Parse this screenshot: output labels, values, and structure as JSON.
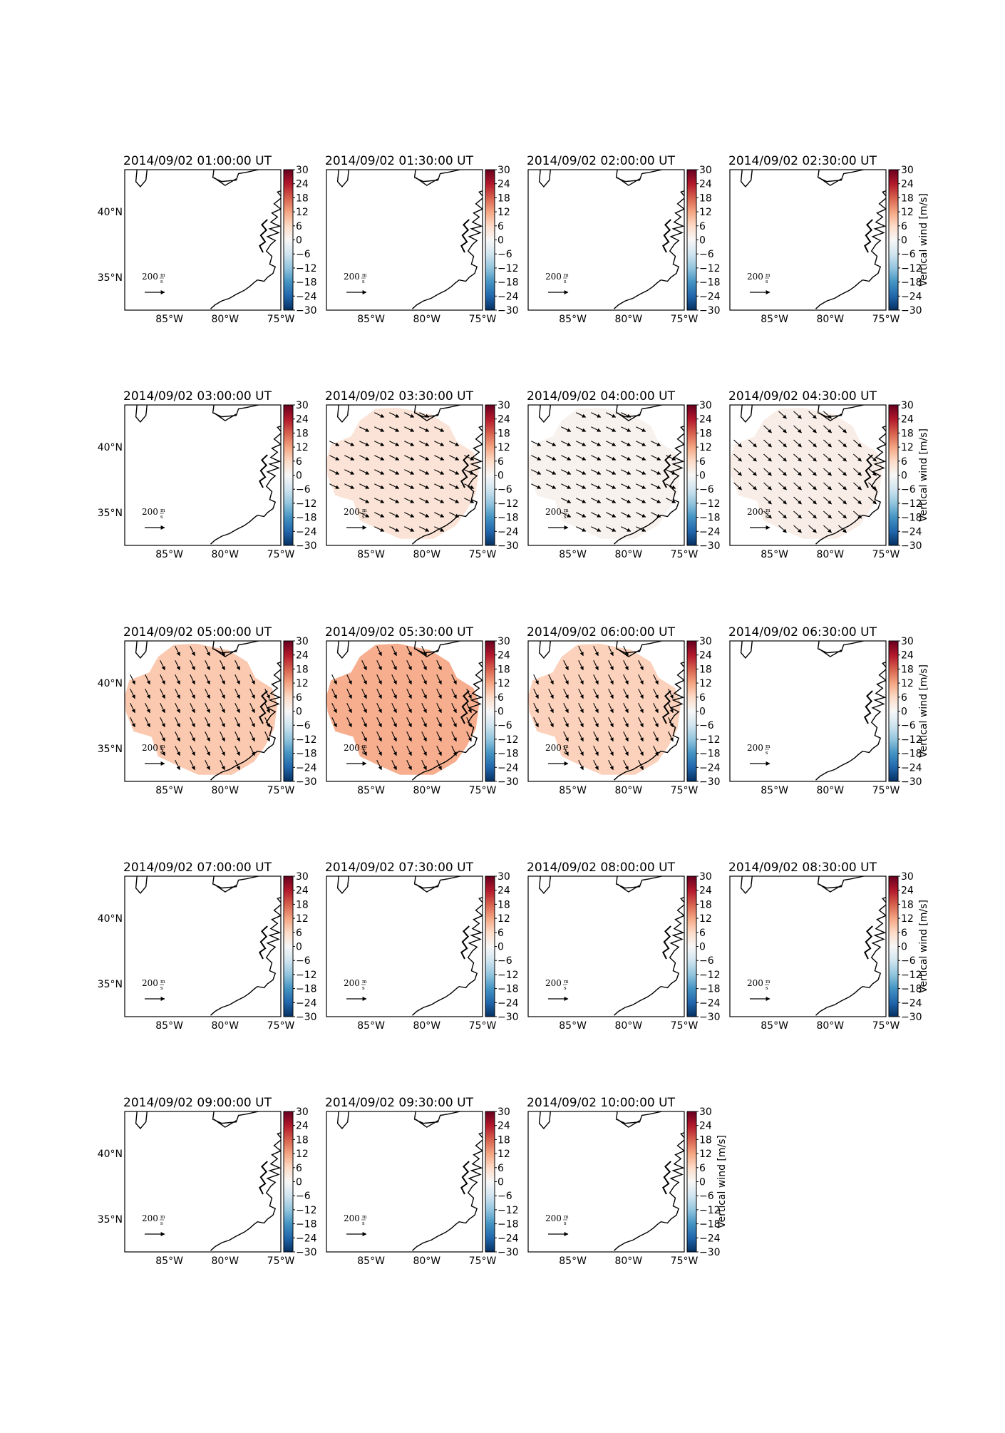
{
  "figure": {
    "map_extent": {
      "lon": [
        -89,
        -75
      ],
      "lat": [
        32.5,
        43.2
      ]
    },
    "x_ticks": [
      {
        "value": -85,
        "label": "85°W"
      },
      {
        "value": -80,
        "label": "80°W"
      },
      {
        "value": -75,
        "label": "75°W"
      }
    ],
    "y_ticks": [
      {
        "value": 35,
        "label": "35°N"
      },
      {
        "value": 40,
        "label": "40°N"
      }
    ],
    "colorbar": {
      "ticks": [
        "30",
        "24",
        "18",
        "12",
        "6",
        "0",
        "−6",
        "−12",
        "−18",
        "−24",
        "−30"
      ],
      "range": [
        -30,
        30
      ],
      "label": "Vertical wind [m/s]",
      "colors": [
        "#67001f",
        "#b2182b",
        "#d6604d",
        "#f4a582",
        "#fddbc7",
        "#f7f7f7",
        "#d1e5f0",
        "#92c5de",
        "#4393c3",
        "#2166ac",
        "#053061"
      ]
    },
    "quiver_key": {
      "value": "200",
      "unit_num": "m",
      "unit_den": "s"
    }
  },
  "chart_data": [
    {
      "type": "heatmap",
      "title": "2014/09/02 01:00:00 UT",
      "wind_level": null,
      "wind_direction": null
    },
    {
      "type": "heatmap",
      "title": "2014/09/02 01:30:00 UT",
      "wind_level": null,
      "wind_direction": null
    },
    {
      "type": "heatmap",
      "title": "2014/09/02 02:00:00 UT",
      "wind_level": null,
      "wind_direction": null
    },
    {
      "type": "heatmap",
      "title": "2014/09/02 02:30:00 UT",
      "wind_level": null,
      "wind_direction": null
    },
    {
      "type": "heatmap",
      "title": "2014/09/02 03:00:00 UT",
      "wind_level": null,
      "wind_direction": null
    },
    {
      "type": "heatmap",
      "title": "2014/09/02 03:30:00 UT",
      "wind_level": 4,
      "wind_direction": "east-southeast"
    },
    {
      "type": "heatmap",
      "title": "2014/09/02 04:00:00 UT",
      "wind_level": 1,
      "wind_direction": "east-southeast"
    },
    {
      "type": "heatmap",
      "title": "2014/09/02 04:30:00 UT",
      "wind_level": 2,
      "wind_direction": "southeast"
    },
    {
      "type": "heatmap",
      "title": "2014/09/02 05:00:00 UT",
      "wind_level": 8,
      "wind_direction": "south-southeast"
    },
    {
      "type": "heatmap",
      "title": "2014/09/02 05:30:00 UT",
      "wind_level": 11,
      "wind_direction": "south-southeast"
    },
    {
      "type": "heatmap",
      "title": "2014/09/02 06:00:00 UT",
      "wind_level": 7,
      "wind_direction": "south-southeast"
    },
    {
      "type": "heatmap",
      "title": "2014/09/02 06:30:00 UT",
      "wind_level": null,
      "wind_direction": null
    },
    {
      "type": "heatmap",
      "title": "2014/09/02 07:00:00 UT",
      "wind_level": null,
      "wind_direction": null
    },
    {
      "type": "heatmap",
      "title": "2014/09/02 07:30:00 UT",
      "wind_level": null,
      "wind_direction": null
    },
    {
      "type": "heatmap",
      "title": "2014/09/02 08:00:00 UT",
      "wind_level": null,
      "wind_direction": null
    },
    {
      "type": "heatmap",
      "title": "2014/09/02 08:30:00 UT",
      "wind_level": null,
      "wind_direction": null
    },
    {
      "type": "heatmap",
      "title": "2014/09/02 09:00:00 UT",
      "wind_level": null,
      "wind_direction": null
    },
    {
      "type": "heatmap",
      "title": "2014/09/02 09:30:00 UT",
      "wind_level": null,
      "wind_direction": null
    },
    {
      "type": "heatmap",
      "title": "2014/09/02 10:00:00 UT",
      "wind_level": null,
      "wind_direction": null
    }
  ]
}
